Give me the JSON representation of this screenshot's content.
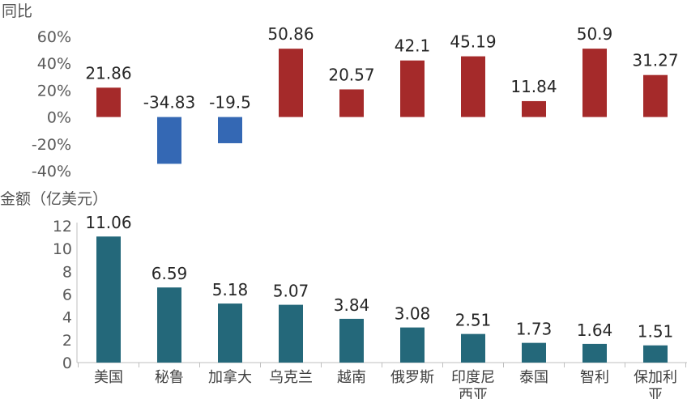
{
  "chart_data": [
    {
      "type": "bar",
      "ylabel": "同比",
      "categories": [
        "美国",
        "秘鲁",
        "加拿大",
        "乌克兰",
        "越南",
        "俄罗斯",
        "印度尼西亚",
        "泰国",
        "智利",
        "保加利亚"
      ],
      "values": [
        21.86,
        -34.83,
        -19.5,
        50.86,
        20.57,
        42.1,
        45.19,
        11.84,
        50.9,
        31.27
      ],
      "value_labels": [
        "21.86",
        "-34.83",
        "-19.5",
        "50.86",
        "20.57",
        "42.1",
        "45.19",
        "11.84",
        "50.9",
        "31.27"
      ],
      "ylim": [
        -40,
        60
      ],
      "yticks": [
        -40,
        -20,
        0,
        20,
        40,
        60
      ],
      "ytick_labels": [
        "-40%",
        "-20%",
        "0%",
        "20%",
        "40%",
        "60%"
      ],
      "grid": false,
      "colors": {
        "positive": "#a52a2a",
        "negative": "#3468b4"
      }
    },
    {
      "type": "bar",
      "ylabel": "金额（亿美元）",
      "categories": [
        "美国",
        "秘鲁",
        "加拿大",
        "乌克兰",
        "越南",
        "俄罗斯",
        "印度尼西亚",
        "泰国",
        "智利",
        "保加利亚"
      ],
      "category_lines": [
        [
          "美国"
        ],
        [
          "秘鲁"
        ],
        [
          "加拿大"
        ],
        [
          "乌克兰"
        ],
        [
          "越南"
        ],
        [
          "俄罗斯"
        ],
        [
          "印度尼",
          "西亚"
        ],
        [
          "泰国"
        ],
        [
          "智利"
        ],
        [
          "保加利",
          "亚"
        ]
      ],
      "values": [
        11.06,
        6.59,
        5.18,
        5.07,
        3.84,
        3.08,
        2.51,
        1.73,
        1.64,
        1.51
      ],
      "value_labels": [
        "11.06",
        "6.59",
        "5.18",
        "5.07",
        "3.84",
        "3.08",
        "2.51",
        "1.73",
        "1.64",
        "1.51"
      ],
      "ylim": [
        0,
        12
      ],
      "yticks": [
        0,
        2,
        4,
        6,
        8,
        10,
        12
      ],
      "ytick_labels": [
        "0",
        "2",
        "4",
        "6",
        "8",
        "10",
        "12"
      ],
      "grid": false,
      "colors": {
        "bar": "#24687a"
      }
    }
  ]
}
